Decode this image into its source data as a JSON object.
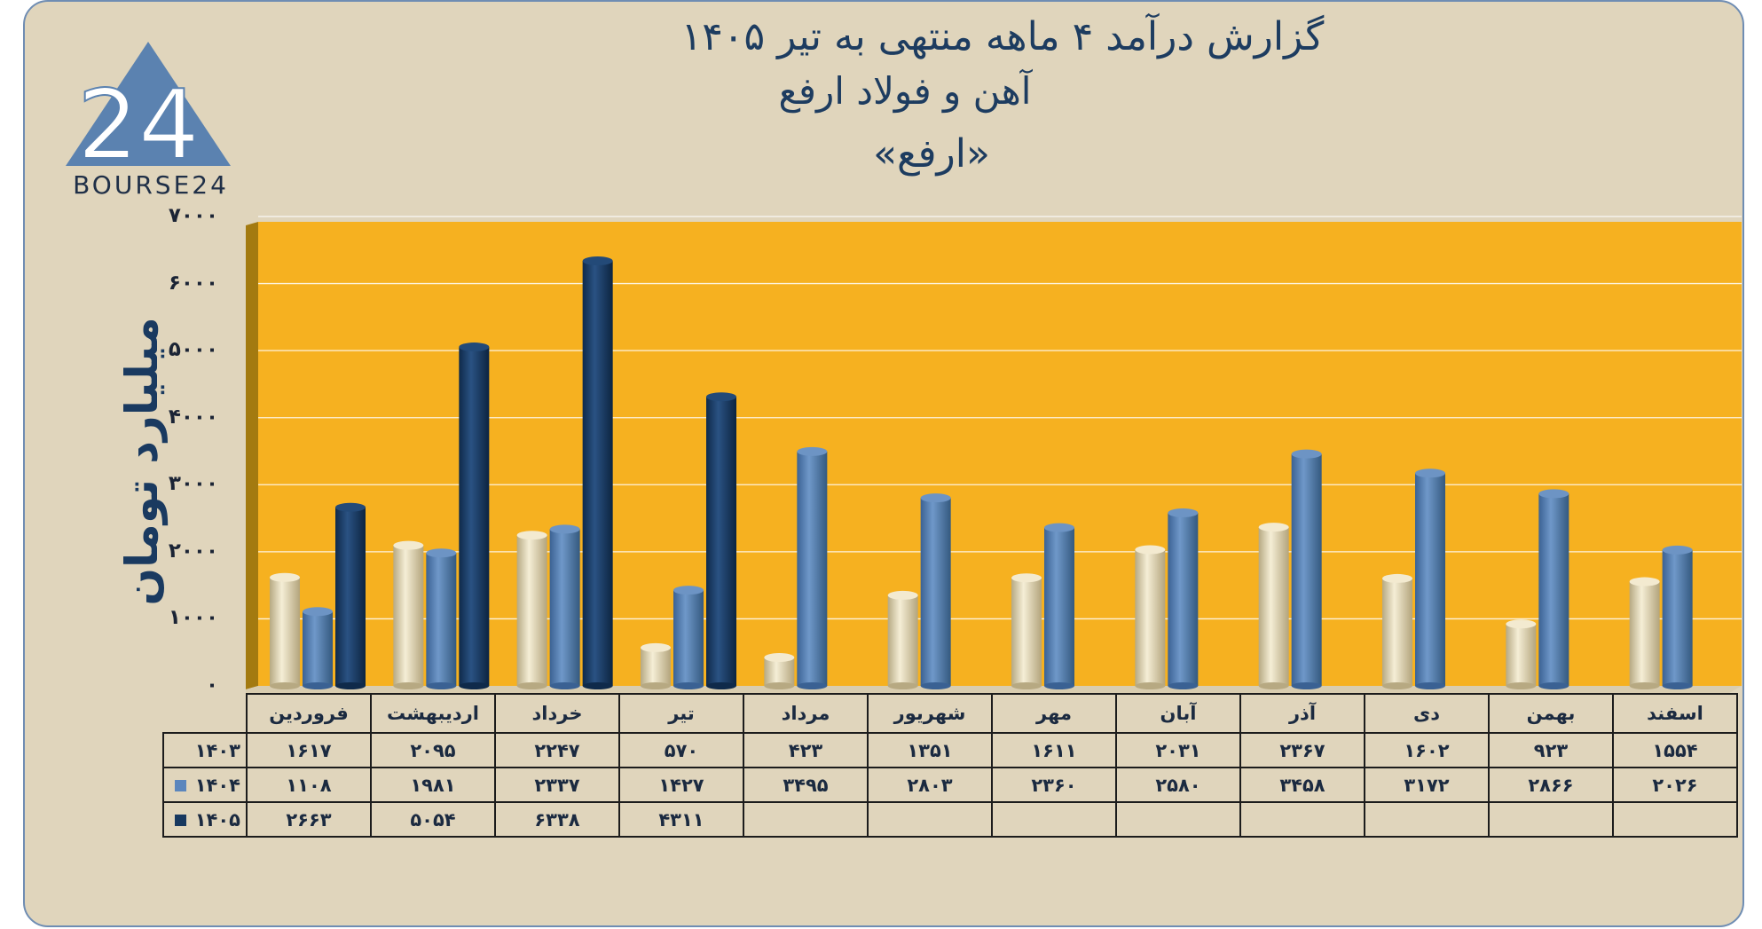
{
  "title": {
    "line1": "گزارش  درآمد ۴ ماهه منتهی به تیر ۱۴۰۵",
    "line2": "آهن و فولاد ارفع",
    "line3": "«ارفع»"
  },
  "logo": {
    "text": "BOURSE24",
    "glyph": "24"
  },
  "chart_data": {
    "type": "bar",
    "ylabel": "میلیارد تومان",
    "ylim": [
      0,
      7000
    ],
    "yticks": [
      "۰",
      "۱۰۰۰",
      "۲۰۰۰",
      "۳۰۰۰",
      "۴۰۰۰",
      "۵۰۰۰",
      "۶۰۰۰",
      "۷۰۰۰"
    ],
    "grid": true,
    "categories": [
      "فروردین",
      "اردیبهشت",
      "خرداد",
      "تیر",
      "مرداد",
      "شهریور",
      "مهر",
      "آبان",
      "آذر",
      "دی",
      "بهمن",
      "اسفند"
    ],
    "series": [
      {
        "name": "۱۴۰۳",
        "color": "#e8dcb6",
        "values": [
          1617,
          2095,
          2247,
          570,
          423,
          1351,
          1611,
          2031,
          2367,
          1602,
          923,
          1554
        ],
        "labels": [
          "۱۶۱۷",
          "۲۰۹۵",
          "۲۲۴۷",
          "۵۷۰",
          "۴۲۳",
          "۱۳۵۱",
          "۱۶۱۱",
          "۲۰۳۱",
          "۲۳۶۷",
          "۱۶۰۲",
          "۹۲۳",
          "۱۵۵۴"
        ]
      },
      {
        "name": "۱۴۰۴",
        "color": "#4f7eb7",
        "values": [
          1108,
          1981,
          2337,
          1427,
          3495,
          2803,
          2360,
          2580,
          3458,
          3172,
          2866,
          2026
        ],
        "labels": [
          "۱۱۰۸",
          "۱۹۸۱",
          "۲۳۳۷",
          "۱۴۲۷",
          "۳۴۹۵",
          "۲۸۰۳",
          "۲۳۶۰",
          "۲۵۸۰",
          "۳۴۵۸",
          "۳۱۷۲",
          "۲۸۶۶",
          "۲۰۲۶"
        ]
      },
      {
        "name": "۱۴۰۵",
        "color": "#17385f",
        "values": [
          2663,
          5054,
          6338,
          4311,
          null,
          null,
          null,
          null,
          null,
          null,
          null,
          null
        ],
        "labels": [
          "۲۶۶۳",
          "۵۰۵۴",
          "۶۳۳۸",
          "۴۳۱۱",
          "",
          "",
          "",
          "",
          "",
          "",
          "",
          ""
        ]
      }
    ]
  }
}
